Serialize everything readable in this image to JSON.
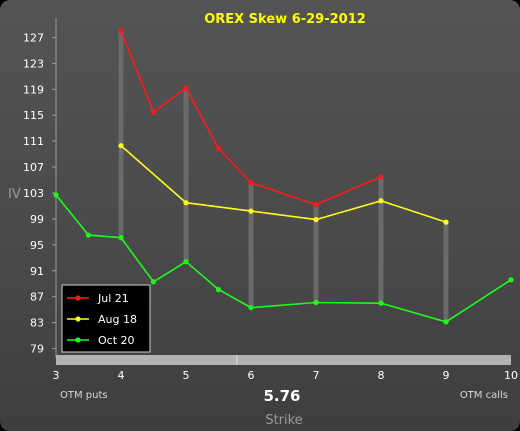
{
  "chart_data": {
    "type": "line",
    "title": "OREX Skew 6-29-2012",
    "xlabel": "Strike",
    "ylabel": "IV",
    "x_ticks": [
      "3",
      "4",
      "5",
      "6",
      "7",
      "8",
      "9",
      "10"
    ],
    "y_ticks": [
      "79",
      "83",
      "87",
      "91",
      "95",
      "99",
      "103",
      "107",
      "111",
      "115",
      "119",
      "123",
      "127"
    ],
    "xlim": [
      3,
      10
    ],
    "ylim": [
      78,
      130
    ],
    "current_price": "5.76",
    "left_note": "OTM puts",
    "right_note": "OTM calls",
    "grid": false,
    "legend_position": "bottom-left",
    "series": [
      {
        "name": "Jul 21",
        "color": "#ff1a1a",
        "points": [
          [
            4,
            128
          ],
          [
            4.5,
            115.5
          ],
          [
            5,
            119.2
          ],
          [
            5.5,
            109.9
          ],
          [
            6,
            104.6
          ],
          [
            7,
            101.2
          ],
          [
            8,
            105.5
          ]
        ]
      },
      {
        "name": "Aug 18",
        "color": "#ffff1a",
        "points": [
          [
            4,
            110.3
          ],
          [
            5,
            101.5
          ],
          [
            6,
            100.2
          ],
          [
            7,
            98.9
          ],
          [
            8,
            101.8
          ],
          [
            9,
            98.5
          ]
        ]
      },
      {
        "name": "Oct 20",
        "color": "#1aff1a",
        "points": [
          [
            3,
            102.7
          ],
          [
            3.5,
            96.5
          ],
          [
            4,
            96.1
          ],
          [
            4.5,
            89.3
          ],
          [
            5,
            92.4
          ],
          [
            5.5,
            88.1
          ],
          [
            6,
            85.3
          ],
          [
            7,
            86.1
          ],
          [
            8,
            86.0
          ],
          [
            9,
            83.1
          ],
          [
            10,
            89.6
          ]
        ]
      }
    ],
    "spread_strikes": [
      4,
      5,
      6,
      7,
      8,
      9
    ]
  }
}
